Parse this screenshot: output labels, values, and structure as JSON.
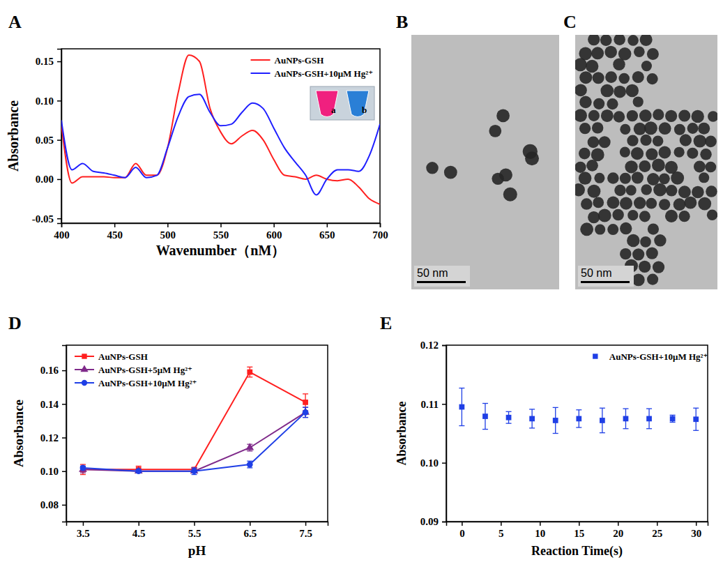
{
  "chart_data": [
    {
      "type": "line",
      "panel_label": "A",
      "x_label": "Wavenumber（nM）",
      "y_label": "Absorbance",
      "x": [
        400,
        410,
        420,
        430,
        440,
        450,
        460,
        470,
        480,
        490,
        500,
        510,
        520,
        530,
        540,
        550,
        560,
        570,
        580,
        590,
        600,
        610,
        620,
        630,
        640,
        650,
        660,
        670,
        680,
        690,
        700
      ],
      "series": [
        {
          "name": "AuNPs-GSH",
          "color": "#ff1f1f",
          "values": [
            0.07,
            -0.005,
            0.003,
            0.003,
            0.003,
            0.002,
            0.002,
            0.02,
            0.005,
            0.005,
            0.04,
            0.11,
            0.158,
            0.15,
            0.09,
            0.06,
            0.045,
            0.055,
            0.062,
            0.05,
            0.025,
            0.005,
            0.003,
            0.0,
            0.005,
            0.0,
            -0.002,
            0.0,
            -0.01,
            -0.025,
            -0.032
          ]
        },
        {
          "name": "AuNPs-GSH+10μM Hg²⁺",
          "color": "#1f1fff",
          "values": [
            0.075,
            0.012,
            0.02,
            0.01,
            0.008,
            0.005,
            0.002,
            0.015,
            0.002,
            0.005,
            0.04,
            0.08,
            0.105,
            0.108,
            0.085,
            0.068,
            0.07,
            0.085,
            0.097,
            0.09,
            0.065,
            0.04,
            0.022,
            0.005,
            -0.02,
            0.0,
            0.012,
            0.012,
            0.01,
            0.03,
            0.07
          ]
        }
      ],
      "xlim": [
        400,
        700
      ],
      "xticks": [
        400,
        450,
        500,
        550,
        600,
        650,
        700
      ],
      "ylim": [
        -0.056,
        0.166
      ],
      "yticks": [
        -0.05,
        {
          "value": 0,
          "label": "0.00"
        },
        0.05,
        {
          "value": 0.1,
          "label": "0.10"
        },
        0.15
      ],
      "legend": "upper right",
      "inset": {
        "labels": [
          "a",
          "b"
        ],
        "colors": [
          "#f0207f",
          "#2a7fd6"
        ]
      }
    },
    {
      "type": "image",
      "panel_label": "B",
      "annotations": [
        "50 nm"
      ]
    },
    {
      "type": "image",
      "panel_label": "C",
      "annotations": [
        "50 nm"
      ]
    },
    {
      "type": "line",
      "panel_label": "D",
      "x_label": "pH",
      "y_label": "Absorbance",
      "x": [
        3.5,
        4.5,
        5.5,
        6.5,
        7.5
      ],
      "series": [
        {
          "name": "AuNPs-GSH",
          "color": "#ff1f1f",
          "marker": "square",
          "values": [
            0.101,
            0.101,
            0.101,
            0.159,
            0.141
          ],
          "errors": [
            0.003,
            0.002,
            0.001,
            0.003,
            0.005
          ]
        },
        {
          "name": "AuNPs-GSH+5μM Hg²⁺",
          "color": "#7f2a8a",
          "marker": "triangle",
          "values": [
            0.101,
            0.1,
            0.1,
            0.114,
            0.135
          ],
          "errors": [
            0.002,
            0.001,
            0.001,
            0.002,
            0.003
          ]
        },
        {
          "name": "AuNPs-GSH+10μM Hg²⁺",
          "color": "#1f3fe6",
          "marker": "circle",
          "values": [
            0.102,
            0.1,
            0.1,
            0.104,
            0.135
          ],
          "errors": [
            0.001,
            0.001,
            0.002,
            0.002,
            0.003
          ]
        }
      ],
      "xlim": [
        3.2,
        7.9
      ],
      "xticks": [
        3.5,
        4.5,
        5.5,
        6.5,
        7.5
      ],
      "ylim": [
        0.07,
        0.175
      ],
      "yticks": [
        0.08,
        {
          "value": 0.1,
          "label": "0.10"
        },
        0.12,
        0.14,
        0.16
      ],
      "legend": "upper left"
    },
    {
      "type": "scatter",
      "panel_label": "E",
      "x_label": "Reaction Time(s)",
      "y_label": "Absorbance",
      "x": [
        0,
        3,
        6,
        9,
        12,
        15,
        18,
        21,
        24,
        27,
        30
      ],
      "series": [
        {
          "name": "AuNPs-GSH+10μM Hg²⁺",
          "color": "#1f3fe6",
          "marker": "square",
          "values": [
            0.1095,
            0.1079,
            0.1077,
            0.1075,
            0.1072,
            0.1075,
            0.1072,
            0.1075,
            0.1075,
            0.1075,
            0.1074
          ],
          "errors": [
            0.0032,
            0.0022,
            0.001,
            0.0016,
            0.0022,
            0.0015,
            0.0021,
            0.0017,
            0.0017,
            0.0006,
            0.0019
          ]
        }
      ],
      "xlim": [
        -2,
        31.5
      ],
      "xticks": [
        0,
        5,
        10,
        15,
        20,
        25,
        30
      ],
      "ylim": [
        0.09,
        0.12
      ],
      "yticks": [
        0.09,
        {
          "value": 0.1,
          "label": "0.10"
        },
        0.11,
        0.12
      ],
      "legend": "upper right"
    }
  ]
}
